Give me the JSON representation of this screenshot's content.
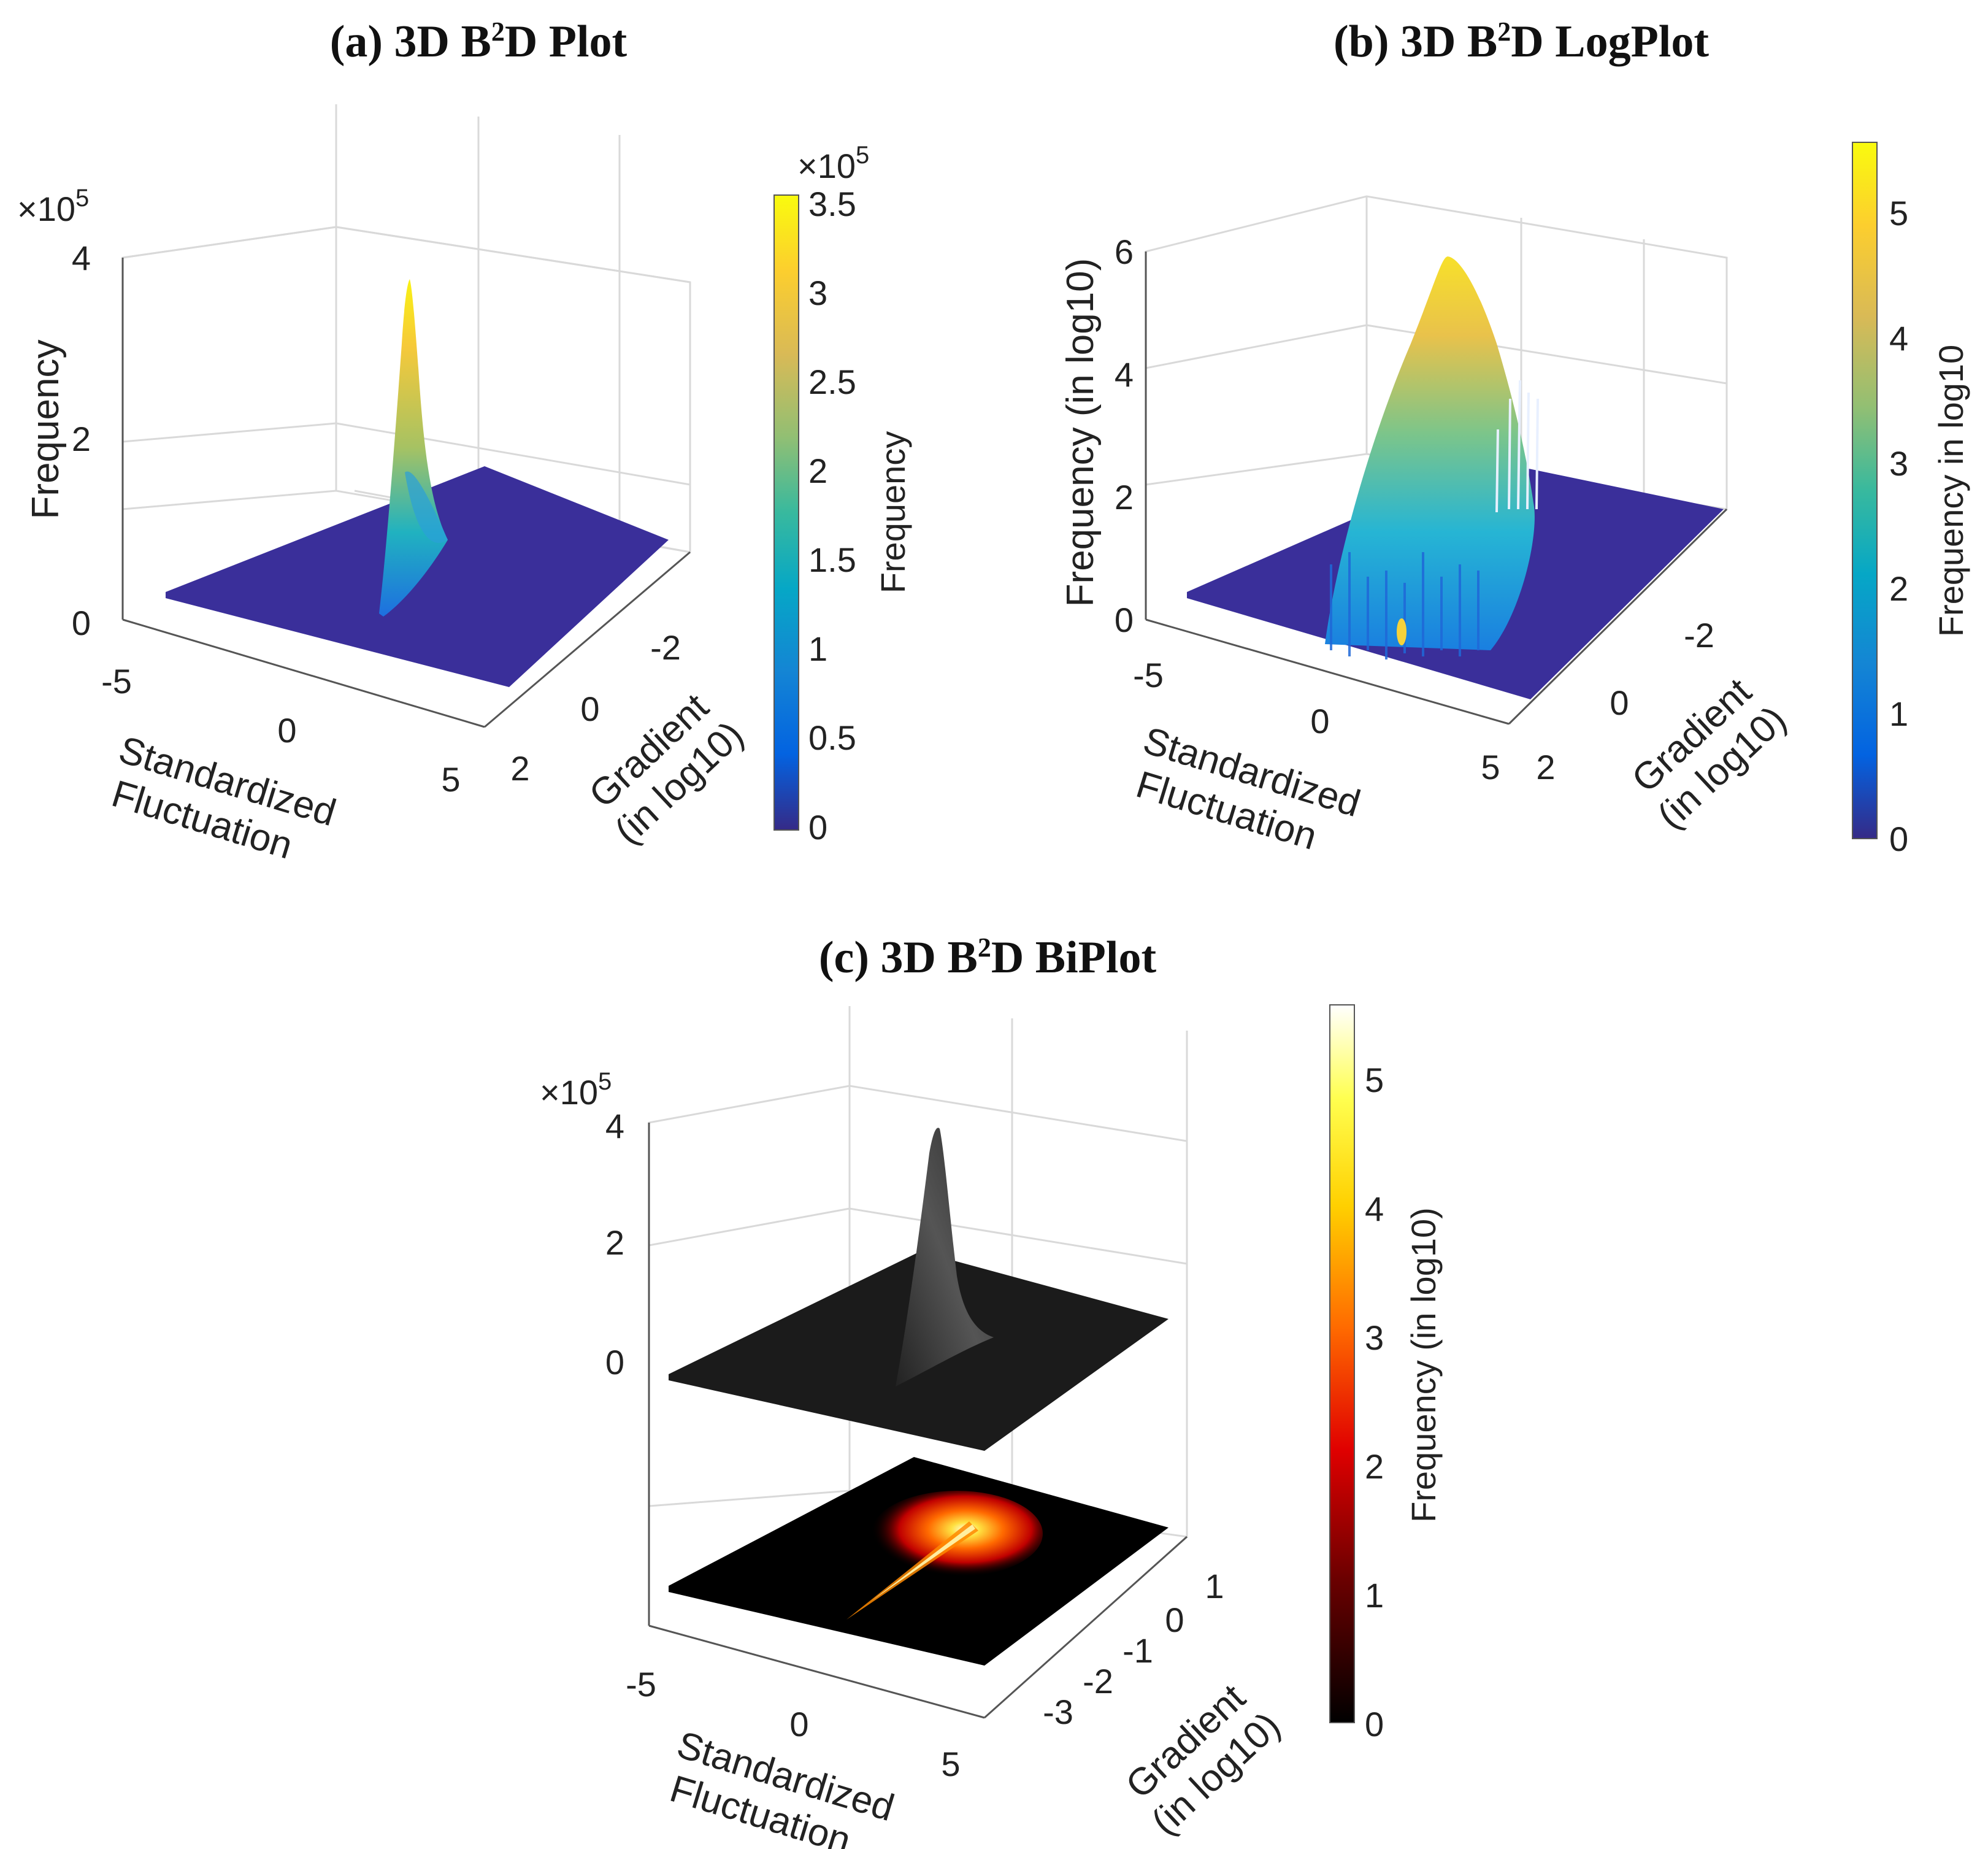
{
  "chart_data": [
    {
      "id": "a",
      "type": "surface3d",
      "title_prefix": "(a) 3D B",
      "title_sup": "2",
      "title_suffix": "D Plot",
      "x_label_lines": [
        "Standardized",
        "Fluctuation"
      ],
      "x_ticks": [
        "-5",
        "0",
        "5"
      ],
      "y_label_lines": [
        "Gradient",
        "(in log10)"
      ],
      "y_ticks": [
        "-2",
        "0",
        "2"
      ],
      "z_label": "Frequency",
      "z_ticks": [
        "0",
        "2",
        "4"
      ],
      "z_multiplier": "×10",
      "z_multiplier_exp": "5",
      "z_range": [
        0,
        400000
      ],
      "peak_value": 380000,
      "colormap": "parula",
      "colorbar": {
        "label": "Frequency",
        "ticks": [
          "0",
          "0.5",
          "1",
          "1.5",
          "2",
          "2.5",
          "3",
          "3.5"
        ],
        "multiplier": "×10",
        "multiplier_exp": "5",
        "range": [
          0,
          350000
        ]
      }
    },
    {
      "id": "b",
      "type": "surface3d",
      "title_prefix": "(b) 3D B",
      "title_sup": "2",
      "title_suffix": "D LogPlot",
      "x_label_lines": [
        "Standardized",
        "Fluctuation"
      ],
      "x_ticks": [
        "-5",
        "0",
        "5"
      ],
      "y_label_lines": [
        "Gradient",
        "(in log10)"
      ],
      "y_ticks": [
        "-2",
        "0",
        "2"
      ],
      "z_label": "Frequency (in log10)",
      "z_ticks": [
        "0",
        "2",
        "4",
        "6"
      ],
      "z_range": [
        0,
        6
      ],
      "peak_value": 5.55,
      "colormap": "parula",
      "colorbar": {
        "label": "Frequency in log10",
        "ticks": [
          "0",
          "1",
          "2",
          "3",
          "4",
          "5"
        ],
        "range": [
          0,
          5.55
        ]
      }
    },
    {
      "id": "c",
      "type": "surface3d_with_projection",
      "title_prefix": "(c) 3D B",
      "title_sup": "2",
      "title_suffix": "D BiPlot",
      "x_label_lines": [
        "Standardized",
        "Fluctuation"
      ],
      "x_ticks": [
        "-5",
        "0",
        "5"
      ],
      "y_label_lines": [
        "Gradient",
        "(in log10)"
      ],
      "y_ticks": [
        "-3",
        "-2",
        "-1",
        "0",
        "1"
      ],
      "z_ticks": [
        "0",
        "2",
        "4"
      ],
      "z_multiplier": "×10",
      "z_multiplier_exp": "5",
      "z_range": [
        0,
        400000
      ],
      "peak_value": 400000,
      "colormap": "hot",
      "colorbar": {
        "label": "Frequency (in log10)",
        "ticks": [
          "0",
          "1",
          "2",
          "3",
          "4",
          "5"
        ],
        "range": [
          0,
          5.55
        ]
      }
    }
  ]
}
